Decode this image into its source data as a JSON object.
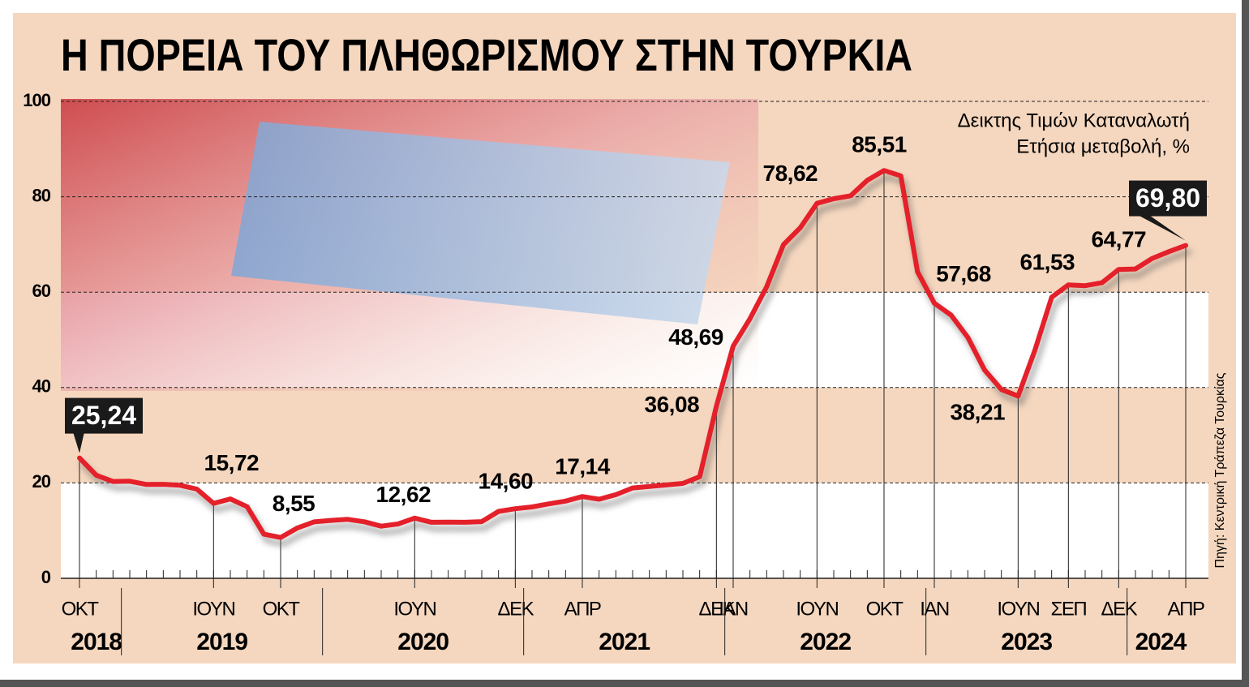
{
  "chart_data": {
    "type": "line",
    "title": "Η ΠΟΡΕΙΑ ΤΟΥ ΠΛΗΘΩΡΙΣΜΟΥ ΣΤΗΝ ΤΟΥΡΚΙΑ",
    "subtitle": [
      "Δεικτης Τιμών Καταναλωτή",
      "Ετήσια μεταβολή, %"
    ],
    "source": "Πηγή: Κεντρική Τράπεζα Τουρκίας",
    "categories": [
      "ΟΚΤ",
      null,
      null,
      null,
      null,
      null,
      null,
      null,
      "ΙΟΥΝ",
      null,
      null,
      null,
      "ΟΚΤ",
      null,
      null,
      null,
      null,
      null,
      null,
      null,
      "ΙΟΥΝ",
      null,
      null,
      null,
      null,
      null,
      "ΔΕΚ",
      null,
      null,
      null,
      "ΑΠΡ",
      null,
      null,
      null,
      null,
      null,
      null,
      null,
      "ΔΕΚ",
      "ΙΑΝ",
      null,
      null,
      null,
      null,
      "ΙΟΥΝ",
      null,
      null,
      null,
      "ΟΚΤ",
      null,
      null,
      "ΙΑΝ",
      null,
      null,
      null,
      null,
      "ΙΟΥΝ",
      null,
      null,
      "ΣΕΠ",
      null,
      null,
      "ΔΕΚ",
      null,
      null,
      null,
      "ΑΠΡ"
    ],
    "category_years": [
      "2018",
      "2018",
      "2018",
      "2019",
      "2019",
      "2019",
      "2019",
      "2019",
      "2019",
      "2019",
      "2019",
      "2019",
      "2019",
      "2019",
      "2019",
      "2020",
      "2020",
      "2020",
      "2020",
      "2020",
      "2020",
      "2020",
      "2020",
      "2020",
      "2020",
      "2020",
      "2020",
      "2021",
      "2021",
      "2021",
      "2021",
      "2021",
      "2021",
      "2021",
      "2021",
      "2021",
      "2021",
      "2021",
      "2021",
      "2022",
      "2022",
      "2022",
      "2022",
      "2022",
      "2022",
      "2022",
      "2022",
      "2022",
      "2022",
      "2022",
      "2022",
      "2023",
      "2023",
      "2023",
      "2023",
      "2023",
      "2023",
      "2023",
      "2023",
      "2023",
      "2023",
      "2023",
      "2023",
      "2024",
      "2024",
      "2024",
      "2024"
    ],
    "series": [
      {
        "name": "Δεικτης Τιμών Καταναλωτή",
        "color": "#e4202a",
        "values": [
          25.24,
          21.62,
          20.3,
          20.35,
          19.67,
          19.71,
          19.5,
          18.71,
          15.72,
          16.65,
          15.01,
          9.26,
          8.55,
          10.56,
          11.84,
          12.15,
          12.37,
          11.86,
          10.94,
          11.39,
          12.62,
          11.76,
          11.77,
          11.75,
          11.89,
          14.03,
          14.6,
          14.97,
          15.61,
          16.19,
          17.14,
          16.59,
          17.53,
          18.95,
          19.25,
          19.58,
          19.89,
          21.31,
          36.08,
          48.69,
          54.44,
          61.14,
          69.97,
          73.5,
          78.62,
          79.6,
          80.21,
          83.45,
          85.51,
          84.39,
          64.27,
          57.68,
          55.18,
          50.51,
          43.68,
          39.59,
          38.21,
          47.83,
          58.94,
          61.53,
          61.36,
          61.98,
          64.77,
          64.86,
          67.07,
          68.5,
          69.8
        ],
        "value_labels": [
          "25,24",
          null,
          null,
          null,
          null,
          null,
          null,
          null,
          "15,72",
          null,
          null,
          null,
          "8,55",
          null,
          null,
          null,
          null,
          null,
          null,
          null,
          "12,62",
          null,
          null,
          null,
          null,
          null,
          "14,60",
          null,
          null,
          null,
          "17,14",
          null,
          null,
          null,
          null,
          null,
          null,
          null,
          "36,08",
          "48,69",
          null,
          null,
          null,
          null,
          "78,62",
          null,
          null,
          null,
          "85,51",
          null,
          null,
          "57,68",
          null,
          null,
          null,
          null,
          "38,21",
          null,
          null,
          "61,53",
          null,
          null,
          "64,77",
          null,
          null,
          null,
          "69,80"
        ]
      }
    ],
    "ylim": [
      0,
      100
    ],
    "yticks": [
      0,
      20,
      40,
      60,
      80,
      100
    ],
    "grid": true
  }
}
